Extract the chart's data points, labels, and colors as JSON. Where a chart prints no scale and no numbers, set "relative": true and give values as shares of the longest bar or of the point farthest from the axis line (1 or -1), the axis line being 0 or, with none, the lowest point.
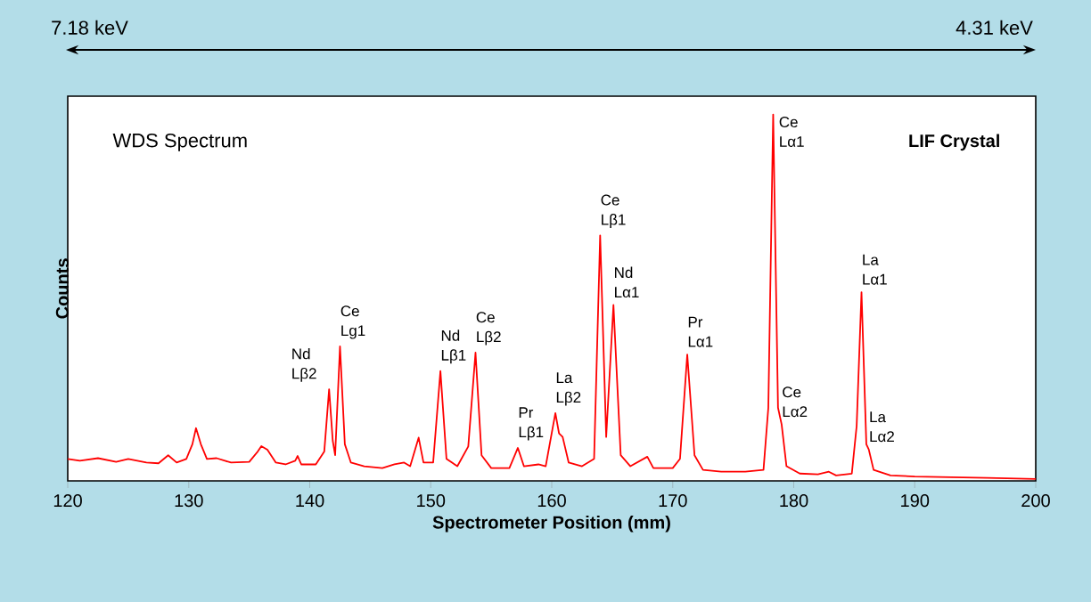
{
  "chart_data": {
    "type": "line",
    "title": "WDS Spectrum",
    "subtitle": "LIF Crystal",
    "xlabel": "Spectrometer Position (mm)",
    "ylabel": "Counts",
    "relative": true,
    "x": [
      120.0,
      121.0,
      122.5,
      124.0,
      125.0,
      126.5,
      127.5,
      128.3,
      129.0,
      129.8,
      130.3,
      130.6,
      131.0,
      131.5,
      132.3,
      133.5,
      135.0,
      135.7,
      136.0,
      136.5,
      137.2,
      138.0,
      138.8,
      139.0,
      139.3,
      140.5,
      141.2,
      141.6,
      141.9,
      142.1,
      142.5,
      142.9,
      143.4,
      144.5,
      146.0,
      147.0,
      147.8,
      148.3,
      149.0,
      149.4,
      150.2,
      150.8,
      151.3,
      152.2,
      153.1,
      153.7,
      154.2,
      155.0,
      156.5,
      157.2,
      157.7,
      158.9,
      159.5,
      160.3,
      160.6,
      160.9,
      161.4,
      162.5,
      163.5,
      164.0,
      164.5,
      165.1,
      165.7,
      166.5,
      167.9,
      168.4,
      170.0,
      170.6,
      171.2,
      171.8,
      172.5,
      174.0,
      176.0,
      177.5,
      177.9,
      178.3,
      178.7,
      179.0,
      179.4,
      180.5,
      182.0,
      182.9,
      183.5,
      184.8,
      185.2,
      185.6,
      186.0,
      186.2,
      186.6,
      188.0,
      190.0,
      193.0,
      196.0,
      200.0
    ],
    "series": [
      {
        "color": "#ff0000",
        "values": [
          0.06,
          0.055,
          0.062,
          0.052,
          0.06,
          0.05,
          0.048,
          0.07,
          0.05,
          0.06,
          0.1,
          0.144,
          0.1,
          0.06,
          0.062,
          0.05,
          0.052,
          0.08,
          0.095,
          0.085,
          0.05,
          0.045,
          0.055,
          0.068,
          0.045,
          0.045,
          0.08,
          0.25,
          0.11,
          0.07,
          0.367,
          0.1,
          0.05,
          0.04,
          0.035,
          0.045,
          0.05,
          0.04,
          0.118,
          0.05,
          0.05,
          0.3,
          0.06,
          0.04,
          0.094,
          0.35,
          0.07,
          0.035,
          0.035,
          0.09,
          0.04,
          0.045,
          0.04,
          0.185,
          0.13,
          0.12,
          0.05,
          0.04,
          0.06,
          0.67,
          0.12,
          0.48,
          0.07,
          0.04,
          0.066,
          0.035,
          0.035,
          0.06,
          0.345,
          0.07,
          0.03,
          0.025,
          0.025,
          0.03,
          0.2,
          1.0,
          0.2,
          0.154,
          0.04,
          0.02,
          0.018,
          0.025,
          0.015,
          0.02,
          0.15,
          0.515,
          0.1,
          0.086,
          0.03,
          0.015,
          0.012,
          0.01,
          0.008,
          0.005
        ]
      }
    ],
    "xlim": [
      120,
      200
    ],
    "xticks": [
      120,
      130,
      140,
      150,
      160,
      170,
      180,
      190,
      200
    ],
    "annotations": [
      {
        "text": "Nd Lβ2",
        "x": 141.6,
        "y": 0.25
      },
      {
        "text": "Ce Lg1",
        "x": 142.5,
        "y": 0.367
      },
      {
        "text": "Nd Lβ1",
        "x": 150.8,
        "y": 0.3
      },
      {
        "text": "Ce Lβ2",
        "x": 153.7,
        "y": 0.35
      },
      {
        "text": "Pr Lβ1",
        "x": 157.2,
        "y": 0.09
      },
      {
        "text": "La Lβ2",
        "x": 160.3,
        "y": 0.185
      },
      {
        "text": "Ce Lβ1",
        "x": 164.0,
        "y": 0.67
      },
      {
        "text": "Nd Lα1",
        "x": 165.1,
        "y": 0.48
      },
      {
        "text": "Pr Lα1",
        "x": 171.2,
        "y": 0.345
      },
      {
        "text": "Ce Lα1",
        "x": 178.3,
        "y": 1.0
      },
      {
        "text": "Ce Lα2",
        "x": 179.0,
        "y": 0.154
      },
      {
        "text": "La Lα1",
        "x": 185.6,
        "y": 0.515
      },
      {
        "text": "La Lα2",
        "x": 186.2,
        "y": 0.086
      },
      "7.18 keV",
      "4.31 keV"
    ]
  }
}
